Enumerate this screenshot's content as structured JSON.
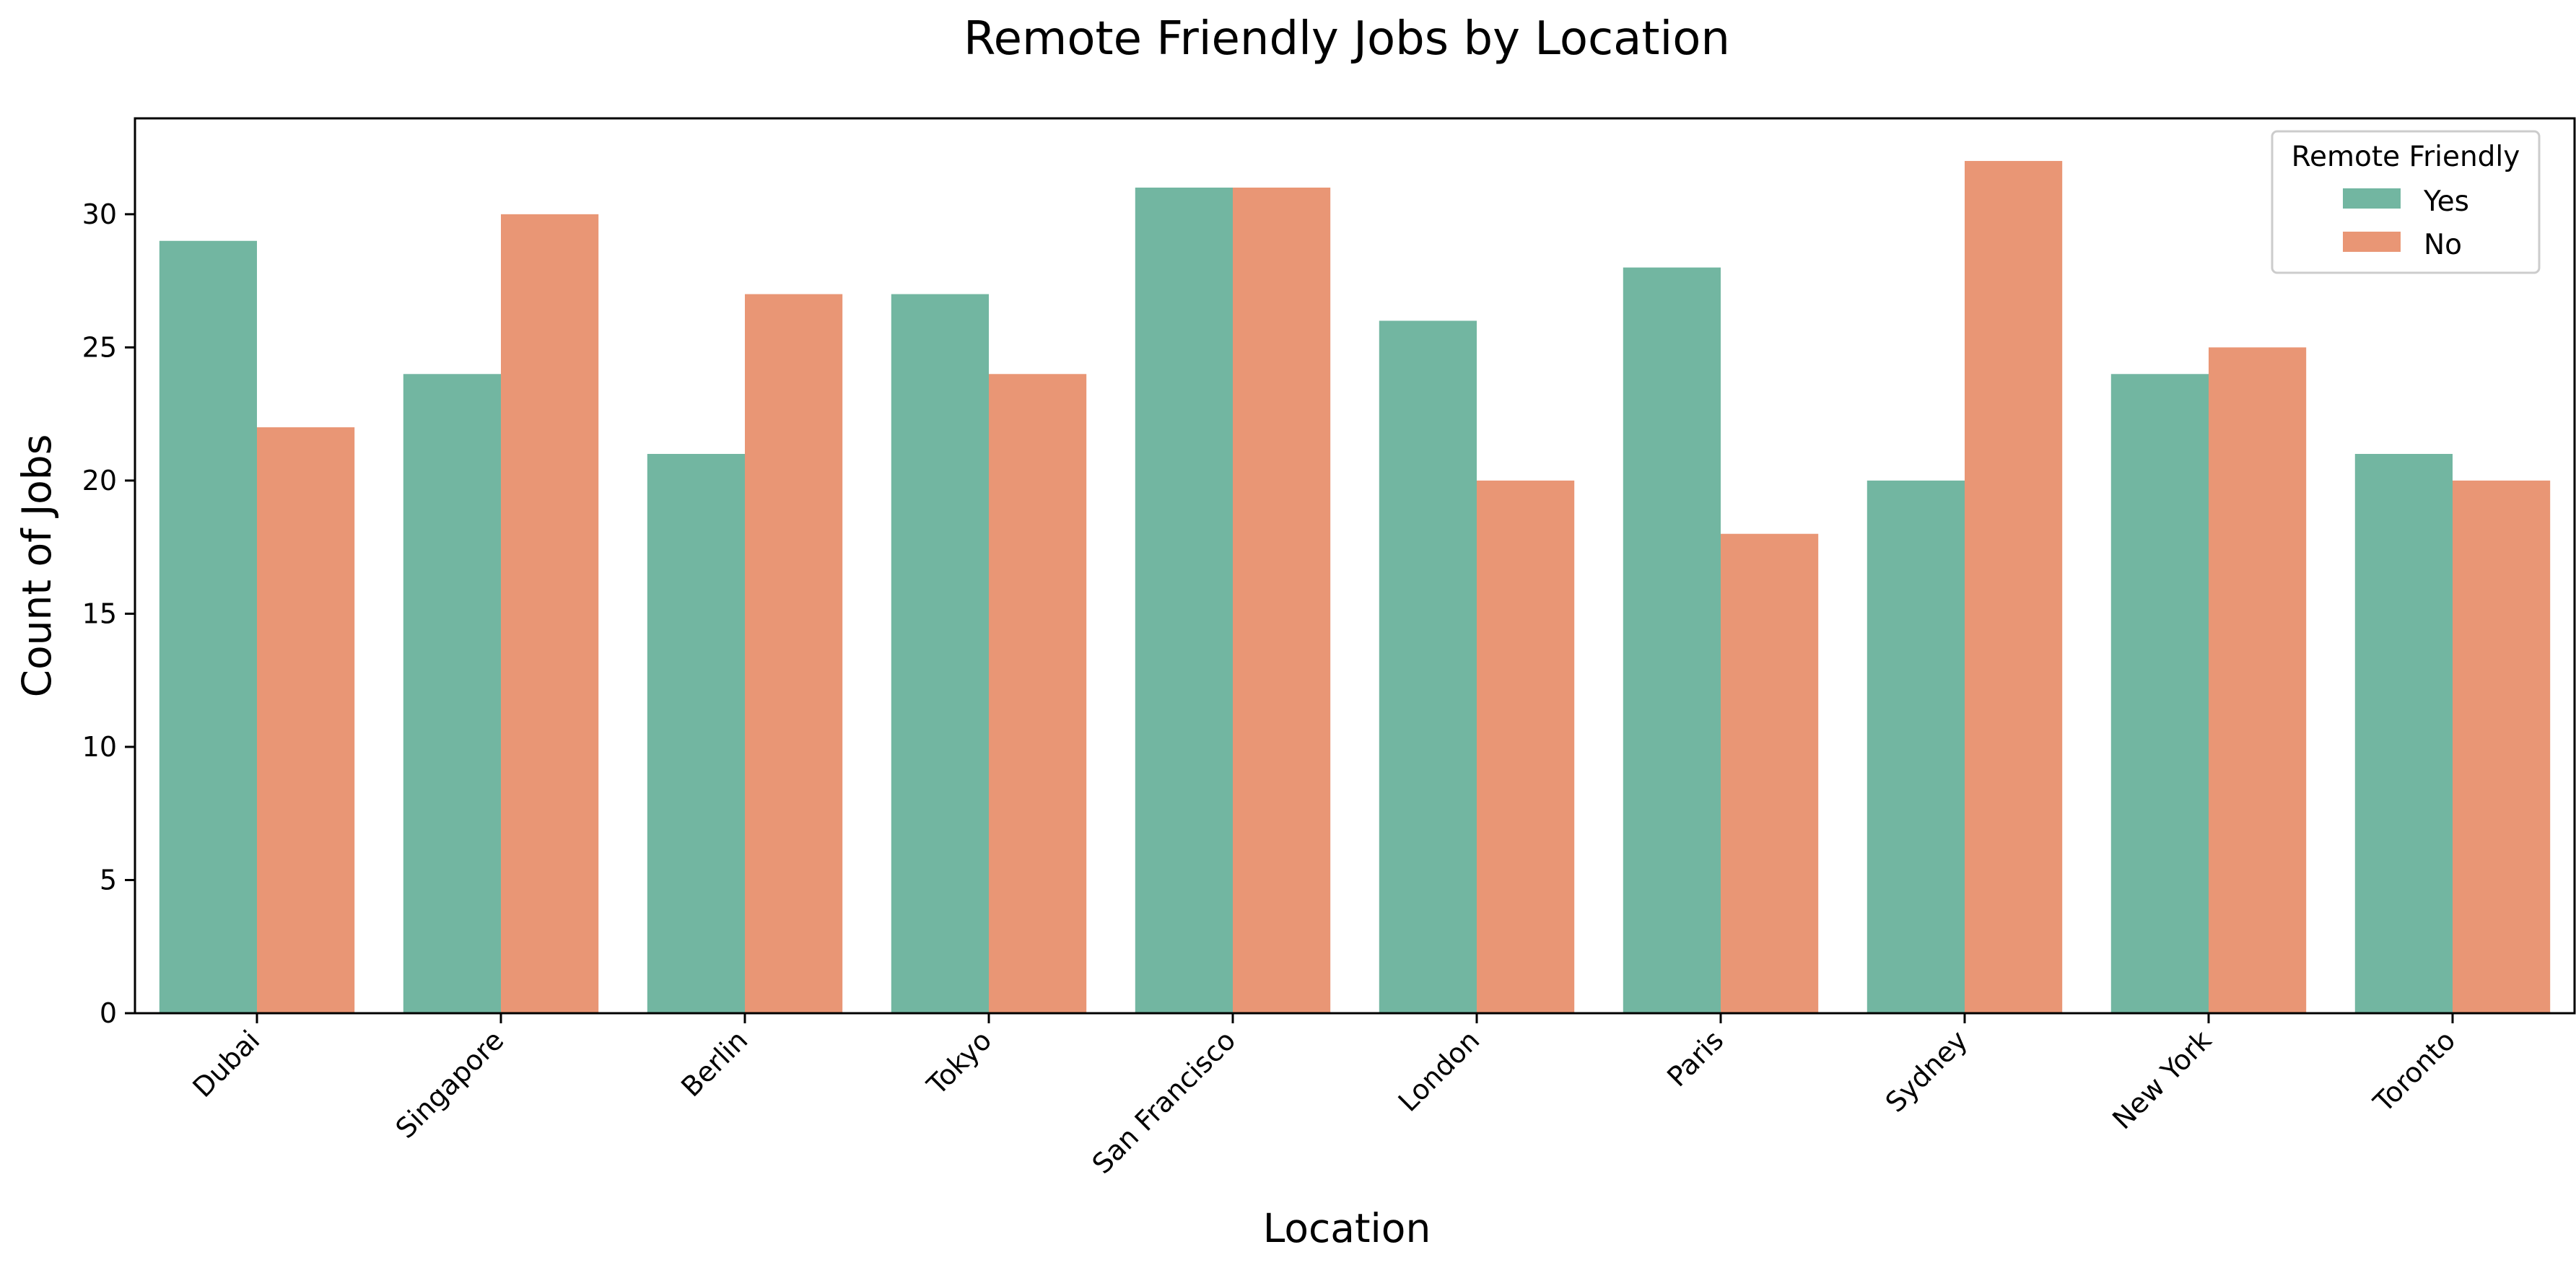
{
  "chart_data": {
    "type": "bar",
    "title": "Remote Friendly Jobs by Location",
    "xlabel": "Location",
    "ylabel": "Count of Jobs",
    "categories": [
      "Dubai",
      "Singapore",
      "Berlin",
      "Tokyo",
      "San Francisco",
      "London",
      "Paris",
      "Sydney",
      "New York",
      "Toronto"
    ],
    "series": [
      {
        "name": "Yes",
        "color": "#72b6a1",
        "values": [
          29,
          24,
          21,
          27,
          31,
          26,
          28,
          20,
          24,
          21
        ]
      },
      {
        "name": "No",
        "color": "#e99675",
        "values": [
          22,
          30,
          27,
          24,
          31,
          20,
          18,
          32,
          25,
          20
        ]
      }
    ],
    "ylim": [
      0,
      33.6
    ],
    "yticks": [
      0,
      5,
      10,
      15,
      20,
      25,
      30
    ],
    "grid": false,
    "legend": {
      "title": "Remote Friendly",
      "placement": "top-right"
    }
  }
}
